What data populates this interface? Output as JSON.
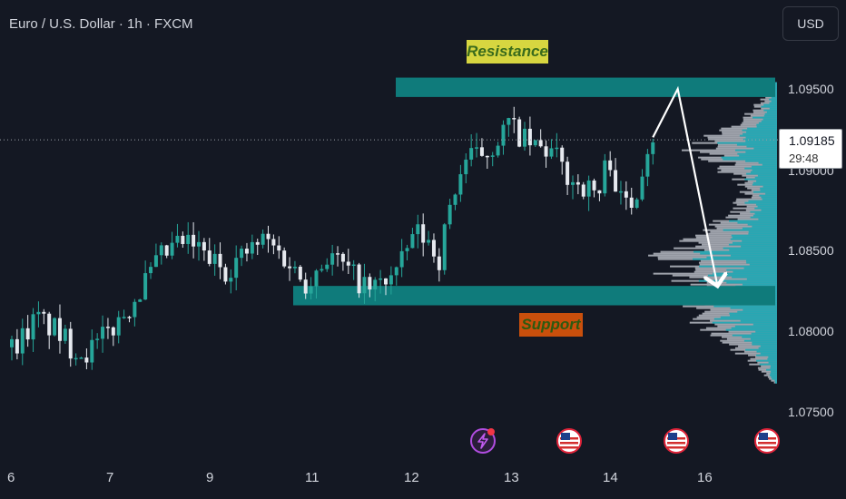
{
  "header": {
    "title": "Euro / U.S. Dollar · 1h · FXCM",
    "currency_button": "USD"
  },
  "annotations": {
    "resistance": "Resistance",
    "support": "Support"
  },
  "price_box": {
    "price": "1.09185",
    "countdown": "29:48"
  },
  "colors": {
    "up": "#26a69a",
    "down": "#e6e9ef",
    "zone": "#0f7b7b",
    "arrow": "#ffffff",
    "background": "#141823"
  },
  "icons": {
    "event_1": "lightning-icon",
    "event_2": "us-flag-icon",
    "event_3": "us-flag-icon",
    "event_4": "us-flag-icon"
  },
  "chart_data": {
    "type": "candlestick",
    "symbol": "Euro / U.S. Dollar",
    "timeframe": "1h",
    "source": "FXCM",
    "y_ticks": [
      "1.09500",
      "1.09000",
      "1.08500",
      "1.08000",
      "1.07500"
    ],
    "x_ticks": [
      "6",
      "7",
      "9",
      "11",
      "12",
      "13",
      "14",
      "16"
    ],
    "ylim": [
      1.0725,
      1.098
    ],
    "current_price": 1.09185,
    "resistance_zone": [
      1.0945,
      1.0957
    ],
    "support_zone": [
      1.0816,
      1.0828
    ],
    "projection": {
      "from": 1.092,
      "peak": 1.095,
      "target": 1.0828
    },
    "close_path": [
      [
        0,
        1.079
      ],
      [
        0.08,
        1.0795
      ],
      [
        0.25,
        1.0808
      ],
      [
        0.45,
        1.08
      ],
      [
        0.6,
        1.079
      ],
      [
        0.75,
        1.0787
      ],
      [
        0.88,
        1.0793
      ],
      [
        1.1,
        1.0808
      ],
      [
        1.5,
        1.0845
      ],
      [
        1.7,
        1.0855
      ],
      [
        1.85,
        1.0852
      ],
      [
        1.95,
        1.0846
      ],
      [
        2.15,
        1.0838
      ],
      [
        2.35,
        1.0848
      ],
      [
        2.55,
        1.0857
      ],
      [
        2.75,
        1.0845
      ],
      [
        2.95,
        1.083
      ],
      [
        3.2,
        1.0848
      ],
      [
        3.4,
        1.0836
      ],
      [
        3.6,
        1.0825
      ],
      [
        3.9,
        1.0838
      ],
      [
        4.05,
        1.0862
      ],
      [
        4.2,
        1.0855
      ],
      [
        4.3,
        1.0845
      ],
      [
        4.42,
        1.088
      ],
      [
        4.55,
        1.0905
      ],
      [
        4.8,
        1.0912
      ],
      [
        5.0,
        1.0928
      ],
      [
        5.2,
        1.0915
      ],
      [
        5.45,
        1.091
      ],
      [
        5.6,
        1.0895
      ],
      [
        5.8,
        1.0888
      ],
      [
        5.92,
        1.0885
      ],
      [
        6.0,
        1.0912
      ],
      [
        6.12,
        1.088
      ],
      [
        6.25,
        1.088
      ],
      [
        6.38,
        1.0912
      ],
      [
        6.45,
        1.0921
      ]
    ]
  }
}
